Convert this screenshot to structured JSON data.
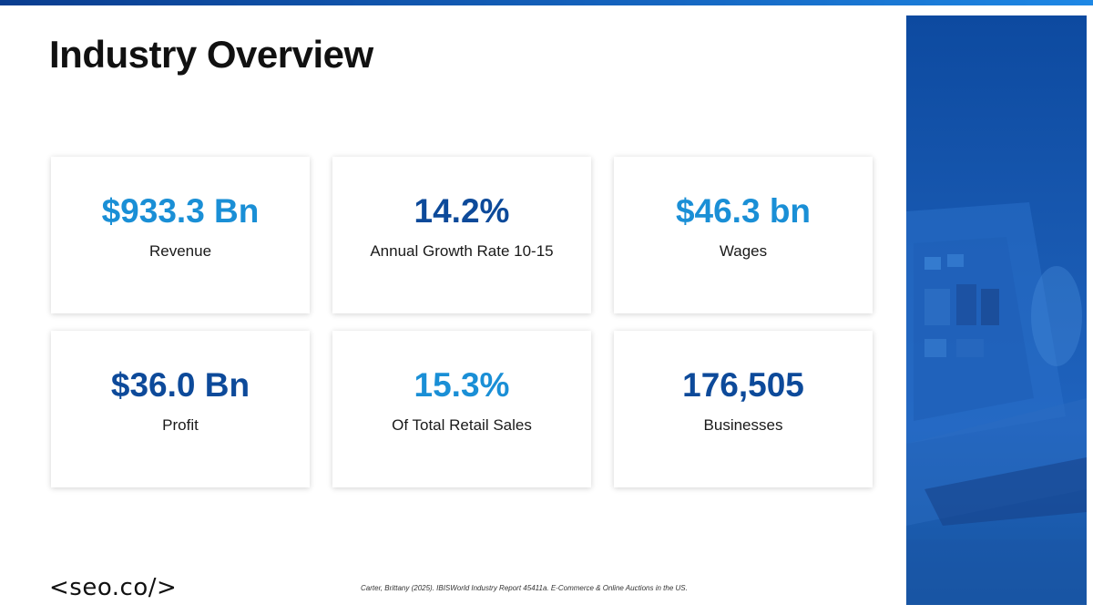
{
  "slide": {
    "title": "Industry Overview"
  },
  "stats": [
    {
      "value": "$933.3 Bn",
      "label": "Revenue",
      "color": "#1a8fd6"
    },
    {
      "value": "14.2%",
      "label": "Annual Growth Rate 10-15",
      "color": "#0d4a9a"
    },
    {
      "value": "$46.3 bn",
      "label": "Wages",
      "color": "#1a8fd6"
    },
    {
      "value": "$36.0 Bn",
      "label": "Profit",
      "color": "#0d4a9a"
    },
    {
      "value": "15.3%",
      "label": "Of Total Retail Sales",
      "color": "#1a8fd6"
    },
    {
      "value": "176,505",
      "label": "Businesses",
      "color": "#0d4a9a"
    }
  ],
  "footer": {
    "logo": "<seo.co/>",
    "citation": "Carter, Brittany (2025). IBISWorld Industry Report 45411a. E-Commerce & Online Auctions in the US."
  },
  "colors": {
    "accent_light": "#1a8fd6",
    "accent_dark": "#0d4a9a",
    "panel_blue": "#1a5bb3"
  }
}
